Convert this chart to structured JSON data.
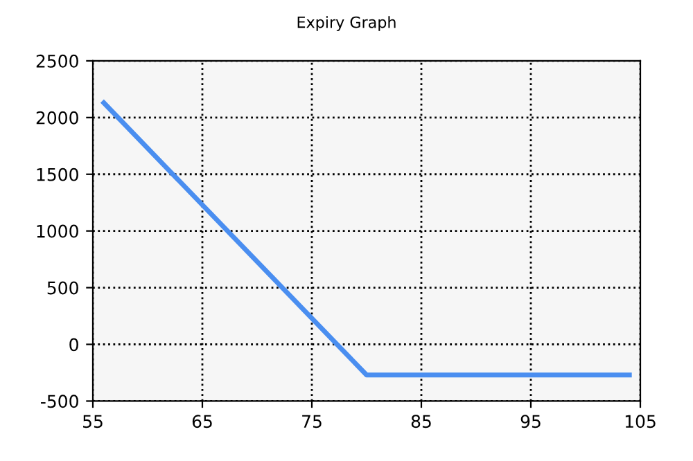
{
  "chart_data": {
    "type": "line",
    "title": "Expiry Graph",
    "x": [
      56,
      80,
      104
    ],
    "series": [
      {
        "color": "#4a8ef0",
        "values": [
          2130,
          -270,
          -270
        ]
      }
    ],
    "xlim": [
      55,
      105
    ],
    "xticks": [
      55,
      65,
      75,
      85,
      95,
      105
    ],
    "ylim": [
      -500,
      2500
    ],
    "yticks": [
      -500,
      0,
      500,
      1000,
      1500,
      2000,
      2500
    ],
    "grid": true,
    "line_style": "solid",
    "marker": "none"
  }
}
